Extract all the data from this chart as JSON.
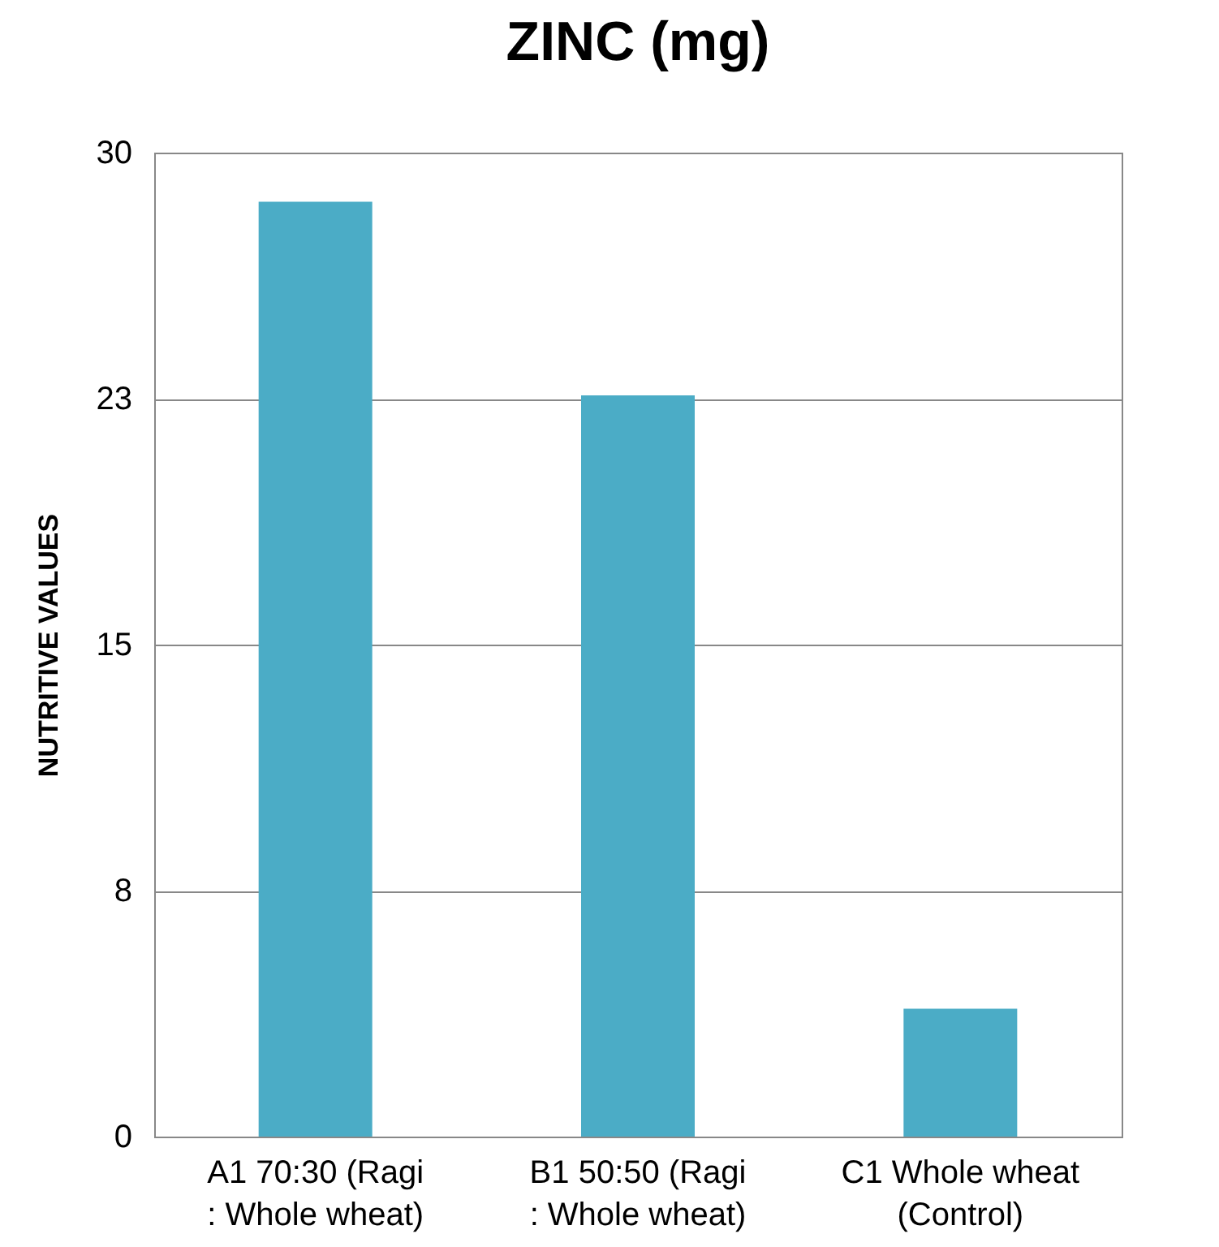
{
  "chart_data": {
    "type": "bar",
    "title": "ZINC (mg)",
    "ylabel": "NUTRITIVE VALUES",
    "categories": [
      "A1 70:30 (Ragi : Whole wheat)",
      "B1 50:50 (Ragi : Whole wheat)",
      "C1 Whole wheat (Control)"
    ],
    "values": [
      28.5,
      22.6,
      3.9
    ],
    "color": "#4bacc6",
    "ylim": [
      0,
      30
    ],
    "yticks": [
      0,
      {
        "value": 7.5,
        "label": "8"
      },
      15,
      {
        "value": 22.5,
        "label": "23"
      },
      30
    ],
    "grid": "y"
  }
}
